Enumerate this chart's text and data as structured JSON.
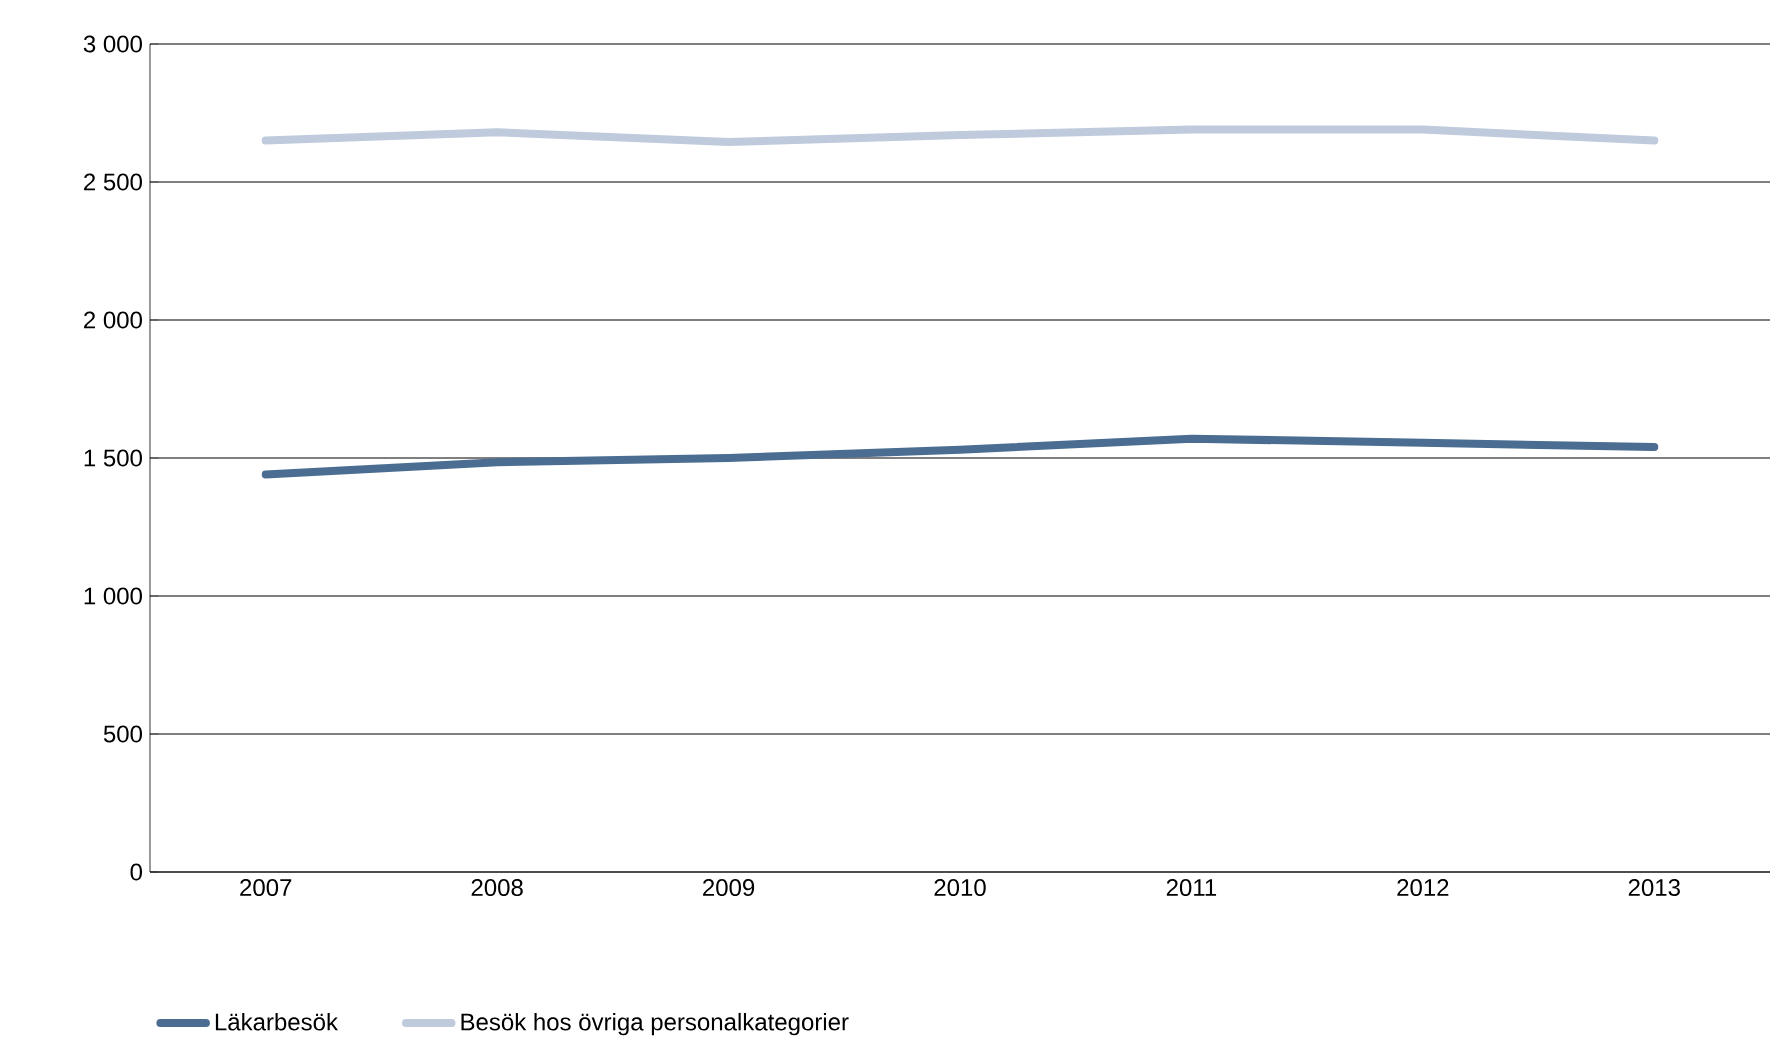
{
  "chart_data": {
    "type": "line",
    "categories": [
      "2007",
      "2008",
      "2009",
      "2010",
      "2011",
      "2012",
      "2013"
    ],
    "series": [
      {
        "name": "Läkarbesök",
        "color": "#4a6d91",
        "values": [
          1440,
          1485,
          1500,
          1530,
          1570,
          1555,
          1540
        ]
      },
      {
        "name": "Besök hos övriga personalkategorier",
        "color": "#bfcadc",
        "values": [
          2650,
          2680,
          2645,
          2670,
          2690,
          2690,
          2650
        ]
      }
    ],
    "ylim": [
      0,
      3000
    ],
    "yticks": [
      0,
      500,
      {
        "value": 1000,
        "label": "1 000"
      },
      {
        "value": 1500,
        "label": "1 500"
      },
      {
        "value": 2000,
        "label": "2 000"
      },
      {
        "value": 2500,
        "label": "2 500"
      },
      {
        "value": 3000,
        "label": "3 000"
      }
    ],
    "grid": "y",
    "legend": "bottom left",
    "marker": "none",
    "line_style": "solid"
  }
}
